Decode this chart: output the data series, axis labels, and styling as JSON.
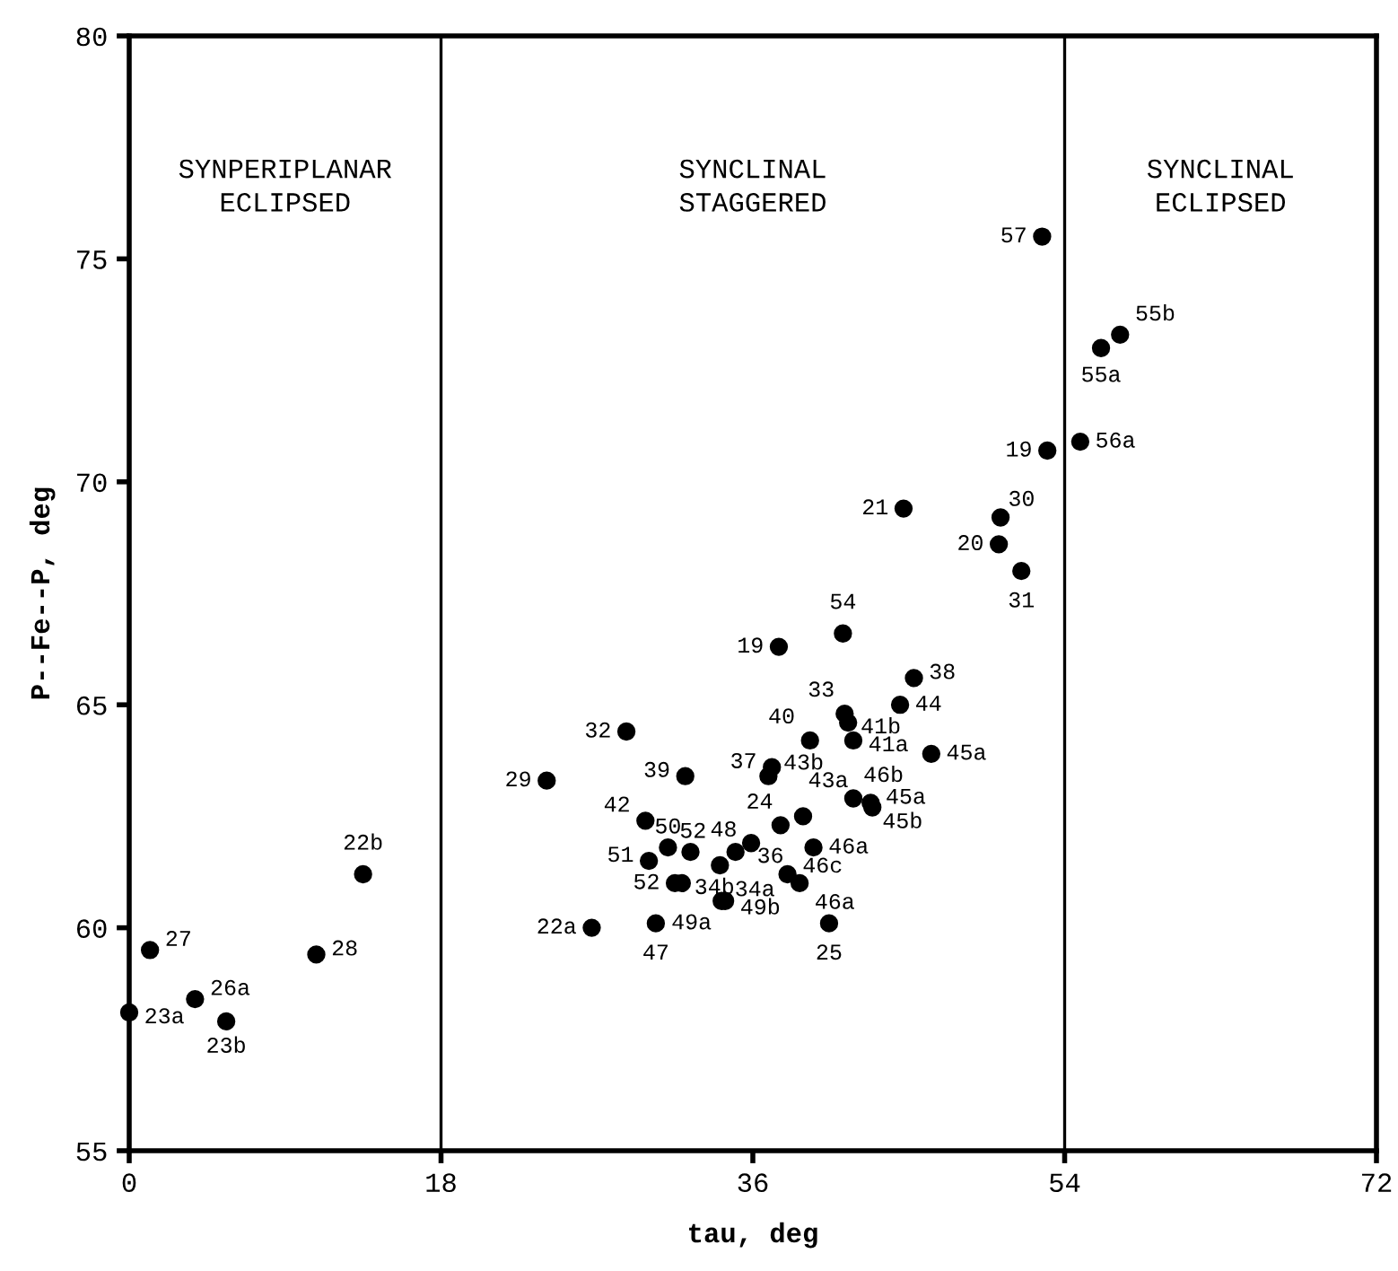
{
  "chart_data": {
    "type": "scatter",
    "xlabel": "tau, deg",
    "ylabel": "P--Fe--P, deg",
    "xlim": [
      0,
      72
    ],
    "ylim": [
      55,
      80
    ],
    "xticks": [
      0,
      18,
      36,
      54,
      72
    ],
    "yticks": [
      55,
      60,
      65,
      70,
      75,
      80
    ],
    "grid": false,
    "legend": false,
    "marker": "circle",
    "ref_lines": [
      {
        "axis": "x",
        "value": 18,
        "color": "#000000"
      },
      {
        "axis": "x",
        "value": 54,
        "color": "#000000"
      }
    ],
    "series": [
      {
        "color": "#000000",
        "x": [
          41.2,
          37.5,
          45.3,
          44.5,
          41.3,
          41.5,
          41.8,
          39.3,
          46.3,
          28.7,
          24.1,
          32.1,
          37.1,
          36.9,
          41.8,
          42.8,
          42.9,
          38.9,
          37.6,
          29.8,
          31.1,
          32.4,
          35.9,
          35.0,
          34.1,
          39.5,
          30.0,
          31.5,
          31.9,
          38.0,
          38.7,
          34.4,
          34.2,
          40.4,
          26.7,
          30.4,
          1.2,
          10.8,
          3.8,
          0,
          5.6,
          13.5,
          52.7,
          57.2,
          56.1,
          53.0,
          54.9,
          44.7,
          50.3,
          50.2,
          51.5
        ],
        "values": [
          66.6,
          66.3,
          65.6,
          65.0,
          64.8,
          64.6,
          64.2,
          64.2,
          63.9,
          64.4,
          63.3,
          63.4,
          63.6,
          63.4,
          62.9,
          62.8,
          62.7,
          62.5,
          62.3,
          62.4,
          61.8,
          61.7,
          61.9,
          61.7,
          61.4,
          61.8,
          61.5,
          61.0,
          61.0,
          61.2,
          61.0,
          60.6,
          60.6,
          60.1,
          60.0,
          60.1,
          59.5,
          59.4,
          58.4,
          58.1,
          57.9,
          61.2,
          75.5,
          73.3,
          73.0,
          70.7,
          70.9,
          69.4,
          69.2,
          68.6,
          68.0
        ]
      }
    ],
    "annotations": [
      "SYNPERIPLANAR\nECLIPSED",
      "SYNCLINAL\nSTAGGERED",
      "SYNCLINAL\nECLIPSED",
      {
        "text": "54",
        "x": 41.2,
        "y": 66.6
      },
      {
        "text": "19",
        "x": 37.5,
        "y": 66.3
      },
      {
        "text": "38",
        "x": 45.3,
        "y": 65.6
      },
      {
        "text": "44",
        "x": 44.5,
        "y": 65.0
      },
      {
        "text": "33",
        "x": 41.3,
        "y": 64.8
      },
      {
        "text": "41b",
        "x": 41.5,
        "y": 64.6
      },
      {
        "text": "41a",
        "x": 41.8,
        "y": 64.2
      },
      {
        "text": "40",
        "x": 39.3,
        "y": 64.2
      },
      {
        "text": "45a",
        "x": 46.3,
        "y": 63.9
      },
      {
        "text": "32",
        "x": 28.7,
        "y": 64.4
      },
      {
        "text": "29",
        "x": 24.1,
        "y": 63.3
      },
      {
        "text": "39",
        "x": 32.1,
        "y": 63.4
      },
      {
        "text": "37",
        "x": 37.1,
        "y": 63.6
      },
      {
        "text": "43b",
        "x": 36.9,
        "y": 63.4
      },
      {
        "text": "46b",
        "x": 41.8,
        "y": 62.9
      },
      {
        "text": "45a",
        "x": 42.8,
        "y": 62.8
      },
      {
        "text": "45b",
        "x": 42.9,
        "y": 62.7
      },
      {
        "text": "43a",
        "x": 38.9,
        "y": 62.5
      },
      {
        "text": "24",
        "x": 37.6,
        "y": 62.3
      },
      {
        "text": "42",
        "x": 29.8,
        "y": 62.4
      },
      {
        "text": "50",
        "x": 31.1,
        "y": 61.8
      },
      {
        "text": "52",
        "x": 32.4,
        "y": 61.7
      },
      {
        "text": "48",
        "x": 35.9,
        "y": 61.9
      },
      {
        "text": "36",
        "x": 35.0,
        "y": 61.7
      },
      {
        "text": "34a",
        "x": 34.1,
        "y": 61.4
      },
      {
        "text": "46a",
        "x": 39.5,
        "y": 61.8
      },
      {
        "text": "51",
        "x": 30.0,
        "y": 61.5
      },
      {
        "text": "52",
        "x": 31.5,
        "y": 61.0
      },
      {
        "text": "34b",
        "x": 31.9,
        "y": 61.0
      },
      {
        "text": "46c",
        "x": 38.0,
        "y": 61.2
      },
      {
        "text": "46a",
        "x": 38.7,
        "y": 61.0
      },
      {
        "text": "49b",
        "x": 34.4,
        "y": 60.6
      },
      {
        "text": "49a",
        "x": 34.2,
        "y": 60.6
      },
      {
        "text": "25",
        "x": 40.4,
        "y": 60.1
      },
      {
        "text": "22a",
        "x": 26.7,
        "y": 60.0
      },
      {
        "text": "47",
        "x": 30.4,
        "y": 60.1
      },
      {
        "text": "27",
        "x": 1.2,
        "y": 59.5
      },
      {
        "text": "28",
        "x": 10.8,
        "y": 59.4
      },
      {
        "text": "26a",
        "x": 3.8,
        "y": 58.4
      },
      {
        "text": "23a",
        "x": 0,
        "y": 58.1
      },
      {
        "text": "23b",
        "x": 5.6,
        "y": 57.9
      },
      {
        "text": "22b",
        "x": 13.5,
        "y": 61.2
      },
      {
        "text": "57",
        "x": 52.7,
        "y": 75.5
      },
      {
        "text": "55b",
        "x": 57.2,
        "y": 73.3
      },
      {
        "text": "55a",
        "x": 56.1,
        "y": 73.0
      },
      {
        "text": "19",
        "x": 53.0,
        "y": 70.7
      },
      {
        "text": "56a",
        "x": 54.9,
        "y": 70.9
      },
      {
        "text": "21",
        "x": 44.7,
        "y": 69.4
      },
      {
        "text": "30",
        "x": 50.3,
        "y": 69.2
      },
      {
        "text": "20",
        "x": 50.2,
        "y": 68.6
      },
      {
        "text": "31",
        "x": 51.5,
        "y": 68.0
      }
    ]
  }
}
